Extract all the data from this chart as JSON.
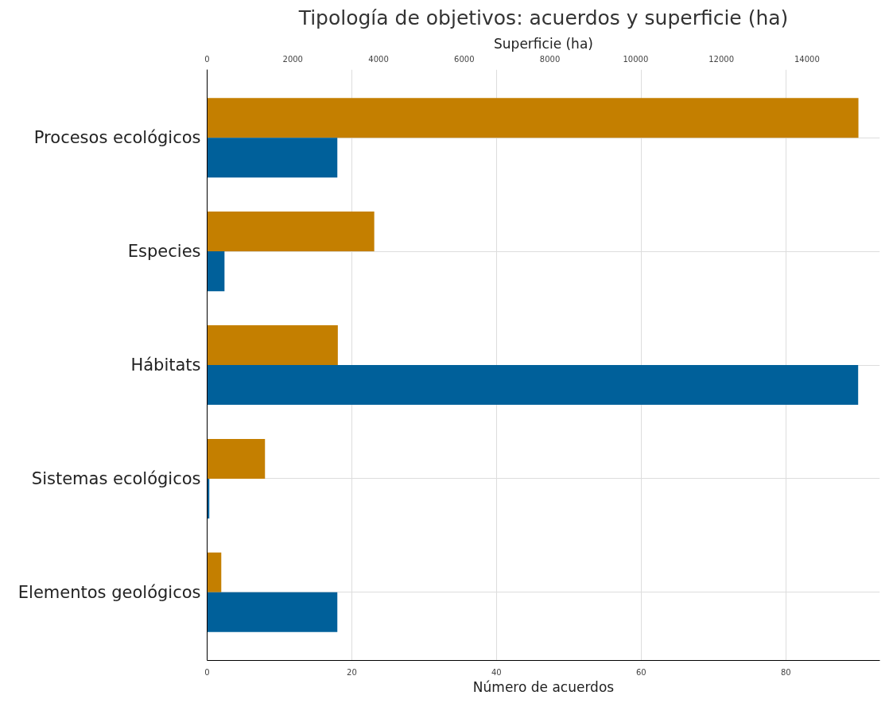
{
  "chart_data": {
    "type": "bar",
    "orientation": "horizontal",
    "title": "Tipología de objetivos: acuerdos y superficie (ha)",
    "xlabel": "Número de acuerdos",
    "x2label": "Superficie (ha)",
    "categories": [
      "Procesos ecológicos",
      "Especies",
      "Hábitats",
      "Sistemas ecológicos",
      "Elementos geológicos"
    ],
    "series": [
      {
        "color": "#c47f00",
        "axis": "x2",
        "values": [
          15200,
          3900,
          3050,
          1350,
          330
        ]
      },
      {
        "color": "#00609a",
        "values": [
          18,
          2.4,
          90,
          0.3,
          18
        ]
      }
    ],
    "xlim": [
      0,
      93
    ],
    "xticks": [
      0,
      20,
      40,
      60,
      80
    ],
    "x2lim": [
      0,
      15700
    ],
    "x2ticks": [
      0,
      2000,
      4000,
      6000,
      8000,
      10000,
      12000,
      14000
    ],
    "grid": true
  }
}
